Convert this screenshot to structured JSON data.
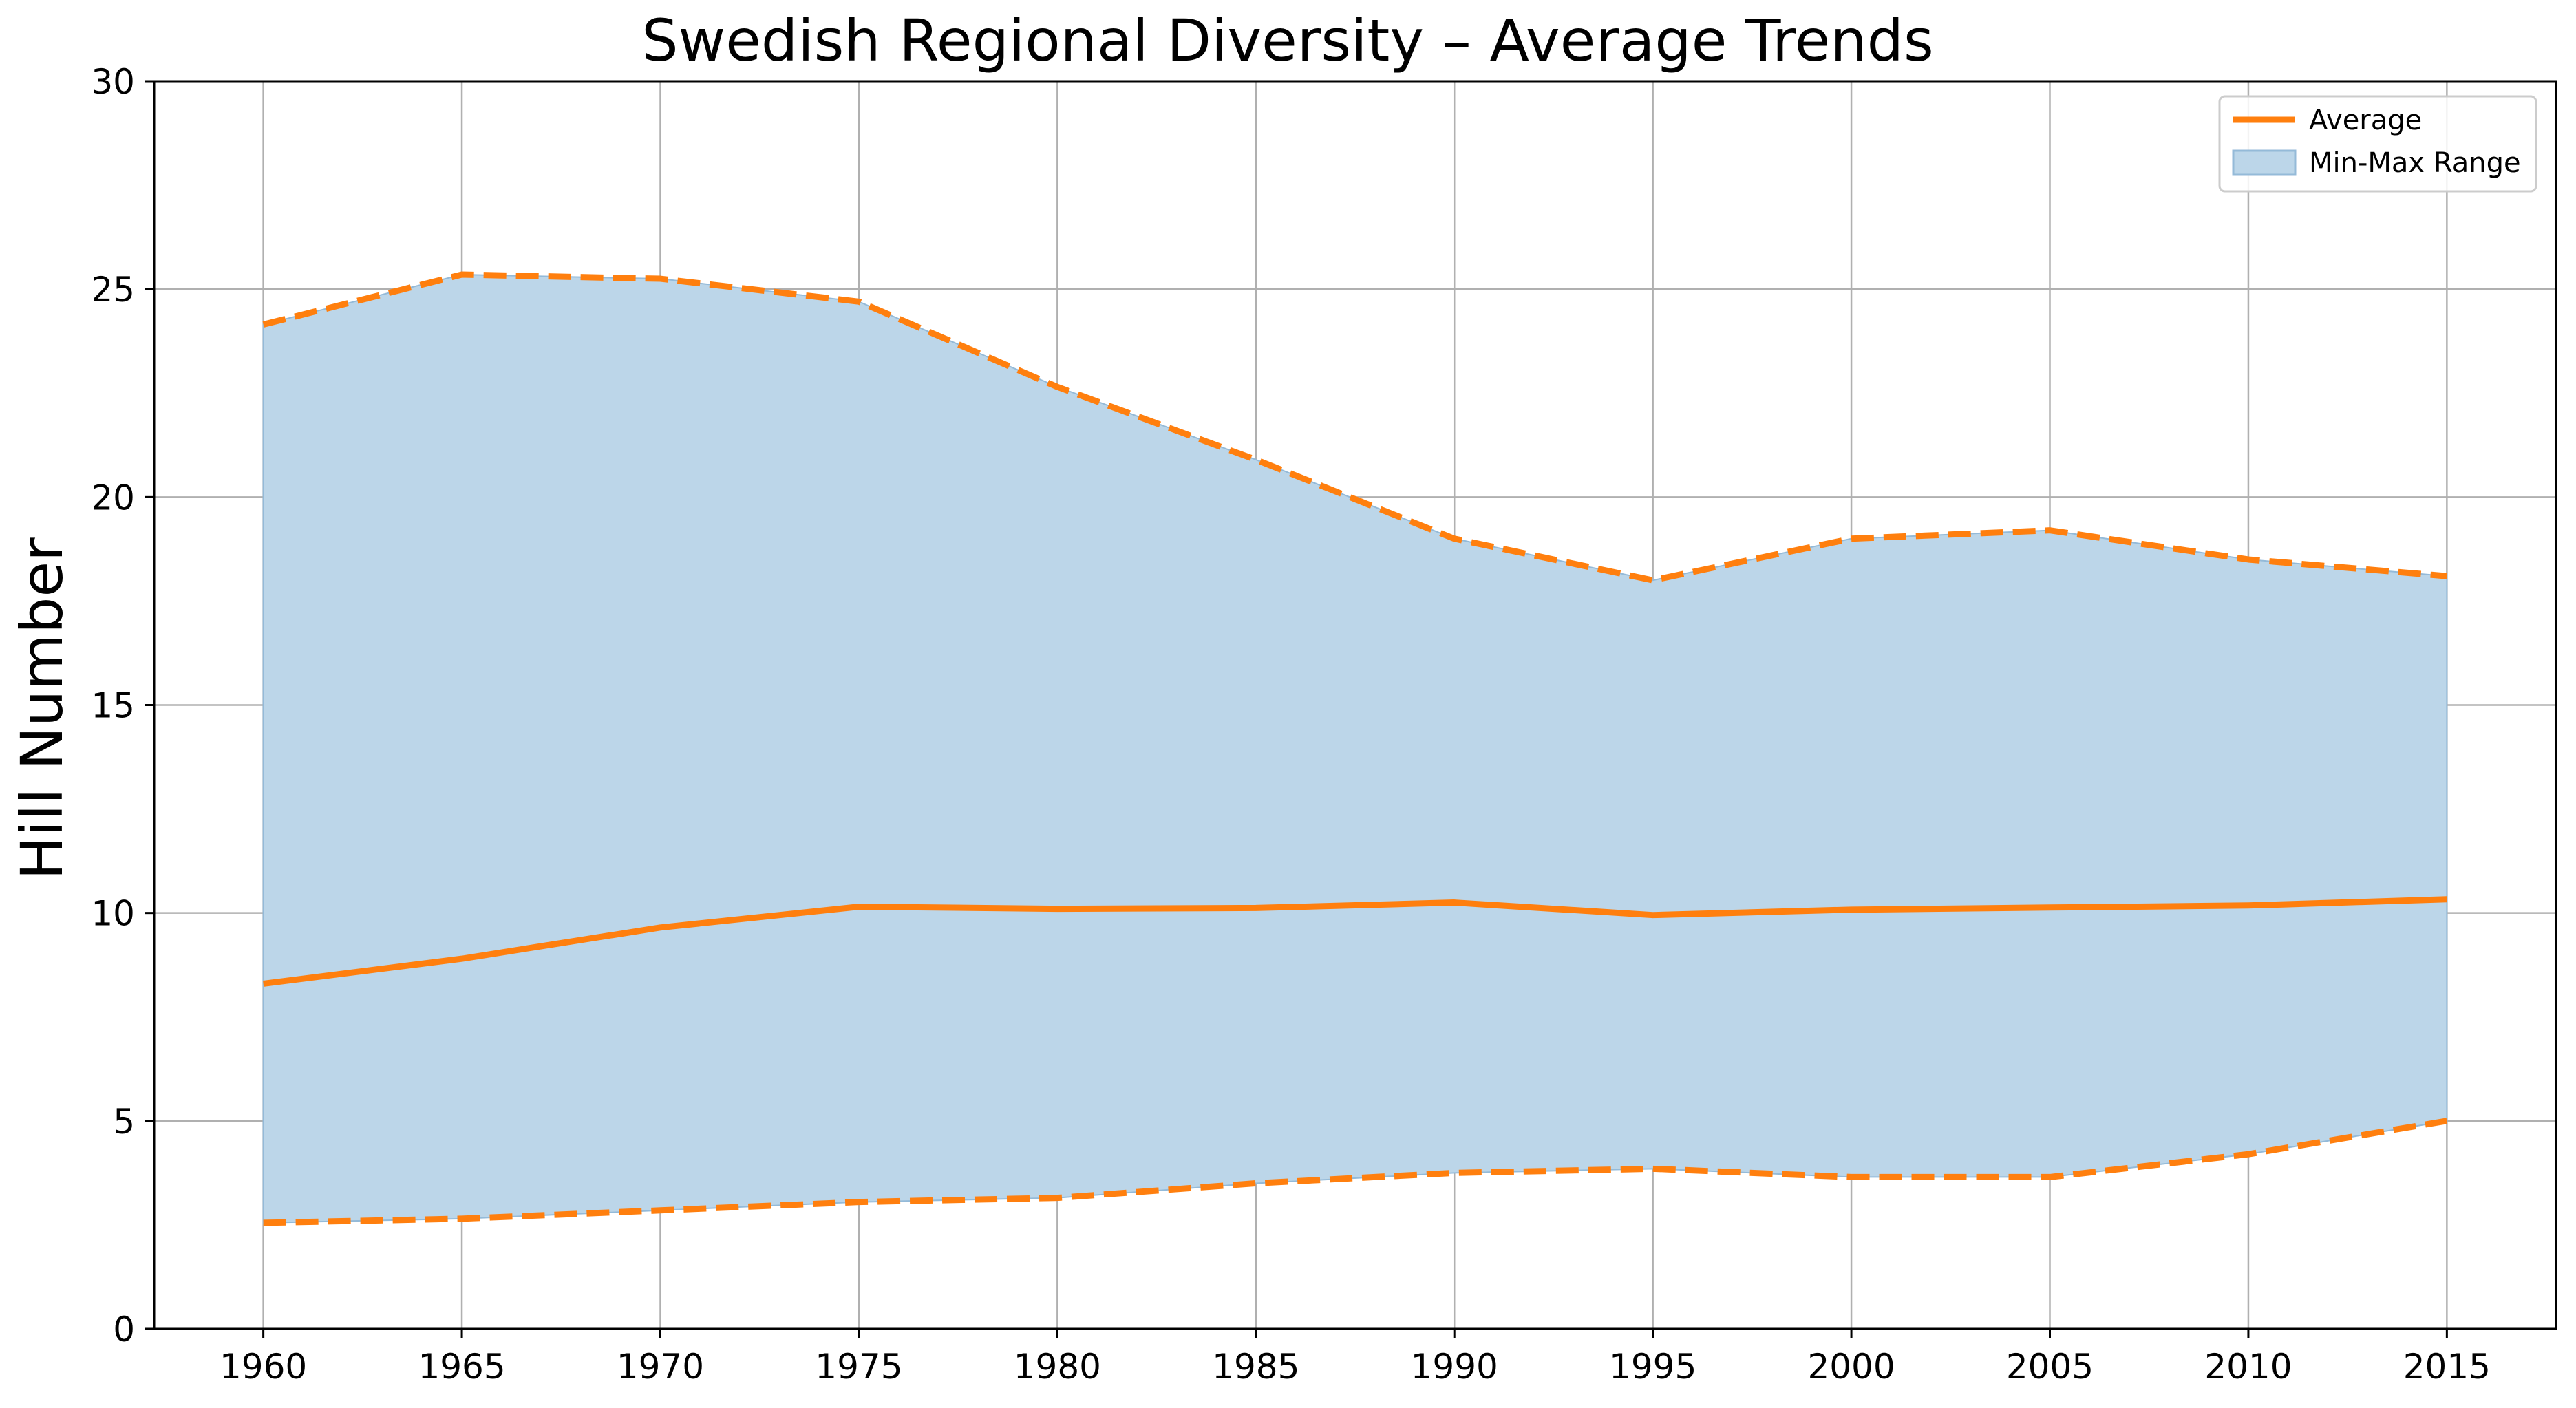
{
  "chart_data": {
    "type": "line",
    "title": "Swedish Regional Diversity – Average Trends",
    "xlabel": "",
    "ylabel": "Hill Number",
    "x": [
      1960,
      1965,
      1970,
      1975,
      1980,
      1985,
      1990,
      1995,
      2000,
      2005,
      2010,
      2015
    ],
    "xlim": [
      1957.25,
      2017.75
    ],
    "ylim": [
      0,
      30
    ],
    "xticks": [
      "1960",
      "1965",
      "1970",
      "1975",
      "1980",
      "1985",
      "1990",
      "1995",
      "2000",
      "2005",
      "2010",
      "2015"
    ],
    "yticks": [
      "0",
      "5",
      "10",
      "15",
      "20",
      "25",
      "30"
    ],
    "grid": true,
    "legend_position": "top-right",
    "legend": [
      "Average",
      "Min-Max Range"
    ],
    "series": [
      {
        "name": "Average",
        "style": "solid",
        "values": [
          8.3,
          8.9,
          9.65,
          10.15,
          10.1,
          10.12,
          10.25,
          9.95,
          10.08,
          10.13,
          10.18,
          10.33
        ]
      },
      {
        "style": "dashed",
        "role": "max",
        "values": [
          24.15,
          25.35,
          25.25,
          24.7,
          22.65,
          20.9,
          19.0,
          18.0,
          19.0,
          19.2,
          18.5,
          18.1
        ]
      },
      {
        "style": "dashed",
        "role": "min",
        "values": [
          2.55,
          2.65,
          2.85,
          3.05,
          3.15,
          3.5,
          3.75,
          3.85,
          3.65,
          3.65,
          4.2,
          5.0
        ]
      }
    ],
    "band": {
      "name": "Min-Max Range",
      "lower_series_index": 2,
      "upper_series_index": 1
    },
    "colors": {
      "line": "#ff7f0e",
      "band_fill": "#bcd6e9",
      "band_edge": "#94bad8",
      "grid": "#b0b0b0",
      "axis": "#000000"
    }
  }
}
